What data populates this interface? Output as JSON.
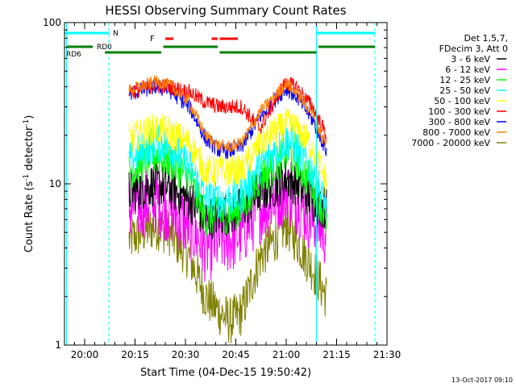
{
  "chart_data": {
    "type": "line",
    "title": "HESSI Observing Summary Count Rates",
    "xlabel": "Start Time (04-Dec-15 19:50:42)",
    "ylabel": "Count Rate (s",
    "ylabel_sup": "-1",
    "ylabel_tail": " detector",
    "ylabel_sup2": "-1",
    "ylabel_end": ")",
    "y_scale": "log",
    "ylim": [
      1,
      100
    ],
    "xlim_minutes": [
      19.9,
      21.5
    ],
    "x_ticks": [
      "20:00",
      "20:15",
      "20:30",
      "20:45",
      "21:00",
      "21:15",
      "21:30"
    ],
    "y_ticks": [
      "1",
      "10",
      "100"
    ],
    "legend_header": [
      "Det 1,5,7,",
      "FDecim 3, Att 0"
    ],
    "series": [
      {
        "name": "3 - 6 keV",
        "color": "#000000",
        "amp": 0.14,
        "values": [
          9,
          10,
          9.5,
          8,
          6,
          6.5,
          6.5,
          7,
          9,
          10,
          11,
          10,
          8,
          7
        ]
      },
      {
        "name": "6 - 12 keV",
        "color": "#ff00ff",
        "amp": 0.22,
        "values": [
          7,
          8,
          7,
          5.5,
          4,
          4.5,
          4.5,
          5,
          7,
          8.5,
          9,
          8,
          6,
          5
        ]
      },
      {
        "name": "12 - 25 keV",
        "color": "#00ff00",
        "amp": 0.12,
        "values": [
          12,
          15,
          14,
          11,
          6,
          6.5,
          6.5,
          7,
          11,
          14,
          16,
          14,
          10,
          6
        ]
      },
      {
        "name": "25 - 50 keV",
        "color": "#00ffff",
        "amp": 0.12,
        "values": [
          14,
          18,
          17,
          13,
          8,
          8,
          8,
          8.5,
          13,
          17,
          19,
          17,
          12,
          7
        ]
      },
      {
        "name": "50 - 100 keV",
        "color": "#ffff00",
        "amp": 0.1,
        "values": [
          19,
          22,
          21,
          18,
          12,
          12,
          12,
          12,
          18,
          22,
          24,
          22,
          17,
          10
        ]
      },
      {
        "name": "100 - 300 keV",
        "color": "#ff0000",
        "amp": 0.05,
        "values": [
          37,
          41,
          40,
          37,
          32,
          30,
          30,
          30,
          22,
          38,
          42,
          40,
          30,
          20
        ]
      },
      {
        "name": "300 - 800 keV",
        "color": "#0000ff",
        "amp": 0.05,
        "values": [
          36,
          40,
          38,
          30,
          19,
          16,
          16,
          17,
          26,
          36,
          39,
          35,
          25,
          16
        ]
      },
      {
        "name": "800 - 7000 keV",
        "color": "#ff8000",
        "amp": 0.04,
        "values": [
          38,
          43,
          41,
          32,
          20,
          17,
          17,
          18,
          28,
          38,
          42,
          37,
          27,
          17
        ]
      },
      {
        "name": "7000 - 20000 keV",
        "color": "#808000",
        "amp": 0.15,
        "values": [
          4.5,
          5.5,
          5,
          3.5,
          2,
          1.6,
          1.4,
          1.6,
          3.5,
          5,
          5.5,
          4.5,
          3,
          2
        ]
      }
    ],
    "series_x_minutes": [
      20.22,
      20.35,
      20.42,
      20.52,
      20.6,
      20.67,
      20.72,
      20.78,
      20.87,
      20.97,
      21.0,
      21.05,
      21.13,
      21.2
    ],
    "annotations": {
      "night_label": "N",
      "flare_label": "F",
      "rd0_label": "RD0",
      "rd6_label": "RD6",
      "colors": {
        "night": "#00ffff",
        "flare": "#ff0000",
        "decimation": "#008000"
      }
    }
  },
  "footer_timestamp": "13-Oct-2017 09:10"
}
